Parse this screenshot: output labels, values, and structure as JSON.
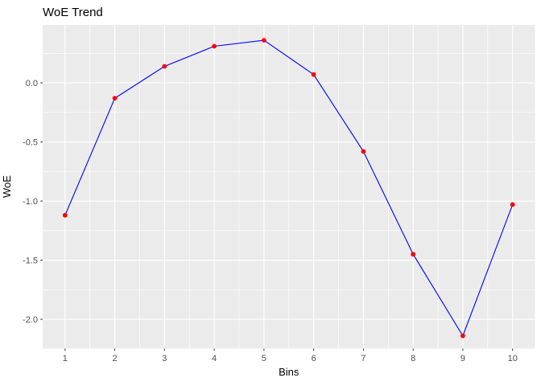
{
  "title": "WoE Trend",
  "chart_data": {
    "type": "line",
    "title": "WoE Trend",
    "xlabel": "Bins",
    "ylabel": "WoE",
    "x": [
      1,
      2,
      3,
      4,
      5,
      6,
      7,
      8,
      9,
      10
    ],
    "values": [
      -1.12,
      -0.13,
      0.14,
      0.31,
      0.36,
      0.07,
      -0.58,
      -1.45,
      -2.14,
      -1.03
    ],
    "x_ticks": [
      1,
      2,
      3,
      4,
      5,
      6,
      7,
      8,
      9,
      10
    ],
    "x_tick_labels": [
      "1",
      "2",
      "3",
      "4",
      "5",
      "6",
      "7",
      "8",
      "9",
      "10"
    ],
    "y_ticks": [
      0.0,
      -0.5,
      -1.0,
      -1.5,
      -2.0
    ],
    "y_tick_labels": [
      "0.0",
      "-0.5",
      "-1.0",
      "-1.5",
      "-2.0"
    ],
    "xlim": [
      0.55,
      10.45
    ],
    "ylim": [
      -2.248,
      0.49
    ],
    "grid": "major+minor",
    "legend": "none",
    "colors": {
      "line": "#0000FF",
      "point": "#FF0000",
      "panel_bg": "#EBEBEB",
      "grid": "#FFFFFF",
      "tick_mark": "#333333",
      "tick_label": "#4D4D4D",
      "text": "#000000",
      "background": "#FFFFFF"
    }
  }
}
